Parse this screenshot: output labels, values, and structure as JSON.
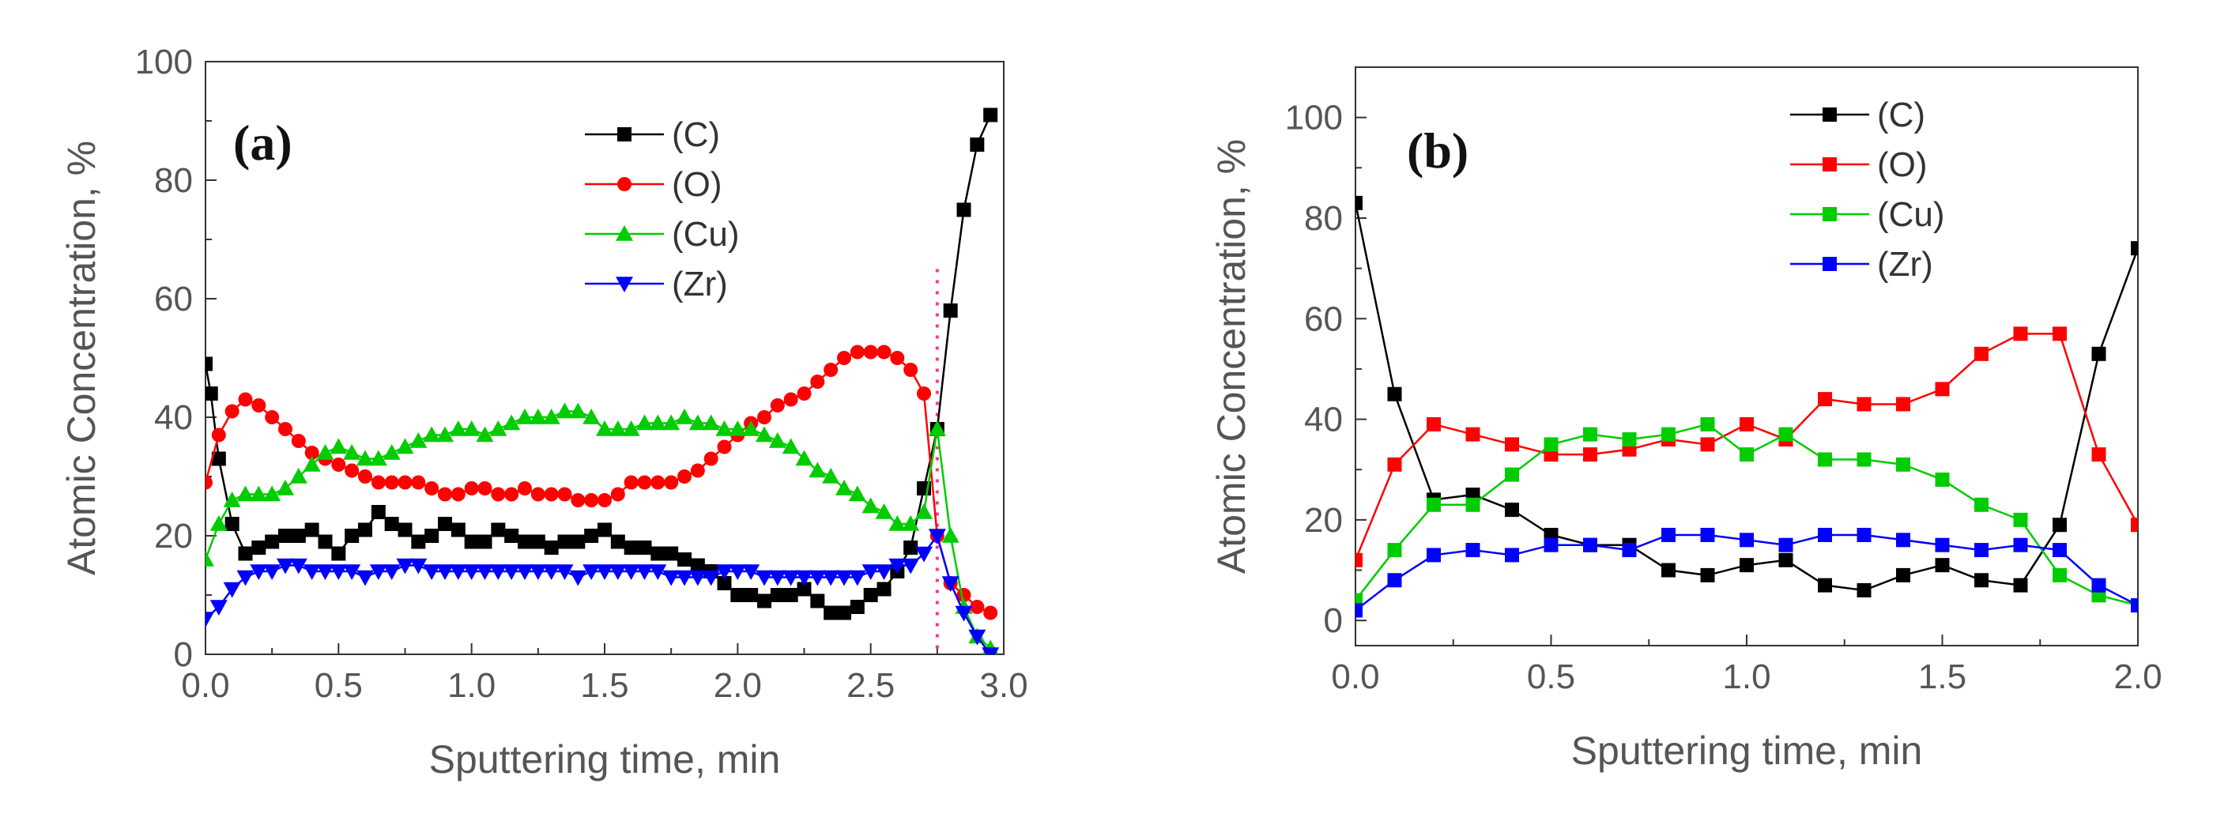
{
  "chart_data": [
    {
      "type": "line",
      "panel_label": "(a)",
      "xlabel": "Sputtering time, min",
      "ylabel": "Atomic Concentration, %",
      "xlim": [
        0,
        3.0
      ],
      "ylim": [
        0,
        100
      ],
      "xticks": [
        "0.0",
        "0.5",
        "1.0",
        "1.5",
        "2.0",
        "2.5",
        "3.0"
      ],
      "yticks": [
        "0",
        "20",
        "40",
        "60",
        "80",
        "100"
      ],
      "legend": "top-center",
      "grid": false,
      "annotation": "dotted vertical line at x = 2.75",
      "vline_x": 2.75,
      "series": [
        {
          "name": "(C)",
          "color": "#000000",
          "marker": "square",
          "x": [
            0.0,
            0.02,
            0.05,
            0.1,
            0.15,
            0.2,
            0.25,
            0.3,
            0.35,
            0.4,
            0.45,
            0.5,
            0.55,
            0.6,
            0.65,
            0.7,
            0.75,
            0.8,
            0.85,
            0.9,
            0.95,
            1.0,
            1.05,
            1.1,
            1.15,
            1.2,
            1.25,
            1.3,
            1.35,
            1.4,
            1.45,
            1.5,
            1.55,
            1.6,
            1.65,
            1.7,
            1.75,
            1.8,
            1.85,
            1.9,
            1.95,
            2.0,
            2.05,
            2.1,
            2.15,
            2.2,
            2.25,
            2.3,
            2.35,
            2.4,
            2.45,
            2.5,
            2.55,
            2.6,
            2.65,
            2.7,
            2.75,
            2.8,
            2.85,
            2.9,
            2.95
          ],
          "y": [
            49,
            44,
            33,
            22,
            17,
            18,
            19,
            20,
            20,
            21,
            19,
            17,
            20,
            21,
            24,
            22,
            21,
            19,
            20,
            22,
            21,
            19,
            19,
            21,
            20,
            19,
            19,
            18,
            19,
            19,
            20,
            21,
            19,
            18,
            18,
            17,
            17,
            16,
            15,
            14,
            12,
            10,
            10,
            9,
            10,
            10,
            11,
            9,
            7,
            7,
            8,
            10,
            11,
            14,
            18,
            28,
            38,
            58,
            75,
            86,
            91
          ]
        },
        {
          "name": "(O)",
          "color": "#ff0000",
          "marker": "circle",
          "x": [
            0.0,
            0.05,
            0.1,
            0.15,
            0.2,
            0.25,
            0.3,
            0.35,
            0.4,
            0.45,
            0.5,
            0.55,
            0.6,
            0.65,
            0.7,
            0.75,
            0.8,
            0.85,
            0.9,
            0.95,
            1.0,
            1.05,
            1.1,
            1.15,
            1.2,
            1.25,
            1.3,
            1.35,
            1.4,
            1.45,
            1.5,
            1.55,
            1.6,
            1.65,
            1.7,
            1.75,
            1.8,
            1.85,
            1.9,
            1.95,
            2.0,
            2.05,
            2.1,
            2.15,
            2.2,
            2.25,
            2.3,
            2.35,
            2.4,
            2.45,
            2.5,
            2.55,
            2.6,
            2.65,
            2.7,
            2.75,
            2.8,
            2.85,
            2.9,
            2.95
          ],
          "y": [
            29,
            37,
            41,
            43,
            42,
            40,
            38,
            36,
            34,
            33,
            32,
            31,
            30,
            29,
            29,
            29,
            29,
            28,
            27,
            27,
            28,
            28,
            27,
            27,
            28,
            27,
            27,
            27,
            26,
            26,
            26,
            27,
            29,
            29,
            29,
            29,
            30,
            31,
            33,
            35,
            37,
            39,
            40,
            42,
            43,
            44,
            46,
            48,
            50,
            51,
            51,
            51,
            50,
            48,
            44,
            20,
            12,
            10,
            8,
            7
          ]
        },
        {
          "name": "(Cu)",
          "color": "#00cc00",
          "marker": "triangle-up",
          "x": [
            0.0,
            0.05,
            0.1,
            0.15,
            0.2,
            0.25,
            0.3,
            0.35,
            0.4,
            0.45,
            0.5,
            0.55,
            0.6,
            0.65,
            0.7,
            0.75,
            0.8,
            0.85,
            0.9,
            0.95,
            1.0,
            1.05,
            1.1,
            1.15,
            1.2,
            1.25,
            1.3,
            1.35,
            1.4,
            1.45,
            1.5,
            1.55,
            1.6,
            1.65,
            1.7,
            1.75,
            1.8,
            1.85,
            1.9,
            1.95,
            2.0,
            2.05,
            2.1,
            2.15,
            2.2,
            2.25,
            2.3,
            2.35,
            2.4,
            2.45,
            2.5,
            2.55,
            2.6,
            2.65,
            2.7,
            2.75,
            2.8,
            2.85,
            2.9,
            2.95
          ],
          "y": [
            16,
            22,
            26,
            27,
            27,
            27,
            28,
            30,
            32,
            34,
            35,
            34,
            33,
            33,
            34,
            35,
            36,
            37,
            37,
            38,
            38,
            37,
            38,
            39,
            40,
            40,
            40,
            41,
            41,
            40,
            38,
            38,
            38,
            39,
            39,
            39,
            40,
            39,
            39,
            38,
            38,
            38,
            37,
            36,
            35,
            33,
            31,
            30,
            28,
            27,
            25,
            24,
            22,
            22,
            24,
            38,
            20,
            8,
            3,
            1
          ]
        },
        {
          "name": "(Zr)",
          "color": "#0000ff",
          "marker": "triangle-down",
          "x": [
            0.0,
            0.05,
            0.1,
            0.15,
            0.2,
            0.25,
            0.3,
            0.35,
            0.4,
            0.45,
            0.5,
            0.55,
            0.6,
            0.65,
            0.7,
            0.75,
            0.8,
            0.85,
            0.9,
            0.95,
            1.0,
            1.05,
            1.1,
            1.15,
            1.2,
            1.25,
            1.3,
            1.35,
            1.4,
            1.45,
            1.5,
            1.55,
            1.6,
            1.65,
            1.7,
            1.75,
            1.8,
            1.85,
            1.9,
            1.95,
            2.0,
            2.05,
            2.1,
            2.15,
            2.2,
            2.25,
            2.3,
            2.35,
            2.4,
            2.45,
            2.5,
            2.55,
            2.6,
            2.65,
            2.7,
            2.75,
            2.8,
            2.85,
            2.9,
            2.95
          ],
          "y": [
            6,
            8,
            11,
            13,
            14,
            14,
            15,
            15,
            14,
            14,
            14,
            14,
            13,
            14,
            14,
            15,
            15,
            14,
            14,
            14,
            14,
            14,
            14,
            14,
            14,
            14,
            14,
            14,
            13,
            14,
            14,
            14,
            14,
            14,
            14,
            13,
            13,
            13,
            13,
            14,
            14,
            14,
            13,
            13,
            13,
            13,
            13,
            13,
            13,
            13,
            14,
            14,
            15,
            15,
            17,
            20,
            12,
            7,
            3,
            0
          ]
        }
      ]
    },
    {
      "type": "line",
      "panel_label": "(b)",
      "xlabel": "Sputtering time, min",
      "ylabel": "Atomic Concentration, %",
      "xlim": [
        0,
        2.0
      ],
      "ylim": [
        -5,
        110
      ],
      "xticks": [
        "0.0",
        "0.5",
        "1.0",
        "1.5",
        "2.0"
      ],
      "yticks": [
        "0",
        "20",
        "40",
        "60",
        "80",
        "100"
      ],
      "legend": "top-center",
      "grid": false,
      "series": [
        {
          "name": "(C)",
          "color": "#000000",
          "marker": "square",
          "x": [
            0.0,
            0.1,
            0.2,
            0.3,
            0.4,
            0.5,
            0.6,
            0.7,
            0.8,
            0.9,
            1.0,
            1.1,
            1.2,
            1.3,
            1.4,
            1.5,
            1.6,
            1.7,
            1.8,
            1.9,
            2.0
          ],
          "y": [
            83,
            45,
            24,
            25,
            22,
            17,
            15,
            15,
            10,
            9,
            11,
            12,
            7,
            6,
            9,
            11,
            8,
            7,
            19,
            53,
            74
          ]
        },
        {
          "name": "(O)",
          "color": "#ff0000",
          "marker": "square",
          "x": [
            0.0,
            0.1,
            0.2,
            0.3,
            0.4,
            0.5,
            0.6,
            0.7,
            0.8,
            0.9,
            1.0,
            1.1,
            1.2,
            1.3,
            1.4,
            1.5,
            1.6,
            1.7,
            1.8,
            1.9,
            2.0
          ],
          "y": [
            12,
            31,
            39,
            37,
            35,
            33,
            33,
            34,
            36,
            35,
            39,
            36,
            44,
            43,
            43,
            46,
            53,
            57,
            57,
            33,
            19
          ]
        },
        {
          "name": "(Cu)",
          "color": "#00cc00",
          "marker": "square",
          "x": [
            0.0,
            0.1,
            0.2,
            0.3,
            0.4,
            0.5,
            0.6,
            0.7,
            0.8,
            0.9,
            1.0,
            1.1,
            1.2,
            1.3,
            1.4,
            1.5,
            1.6,
            1.7,
            1.8,
            1.9,
            2.0
          ],
          "y": [
            4,
            14,
            23,
            23,
            29,
            35,
            37,
            36,
            37,
            39,
            33,
            37,
            32,
            32,
            31,
            28,
            23,
            20,
            9,
            5,
            3
          ]
        },
        {
          "name": "(Zr)",
          "color": "#0000ff",
          "marker": "square",
          "x": [
            0.0,
            0.1,
            0.2,
            0.3,
            0.4,
            0.5,
            0.6,
            0.7,
            0.8,
            0.9,
            1.0,
            1.1,
            1.2,
            1.3,
            1.4,
            1.5,
            1.6,
            1.7,
            1.8,
            1.9,
            2.0
          ],
          "y": [
            2,
            8,
            13,
            14,
            13,
            15,
            15,
            14,
            17,
            17,
            16,
            15,
            17,
            17,
            16,
            15,
            14,
            15,
            14,
            7,
            3
          ]
        }
      ]
    }
  ]
}
